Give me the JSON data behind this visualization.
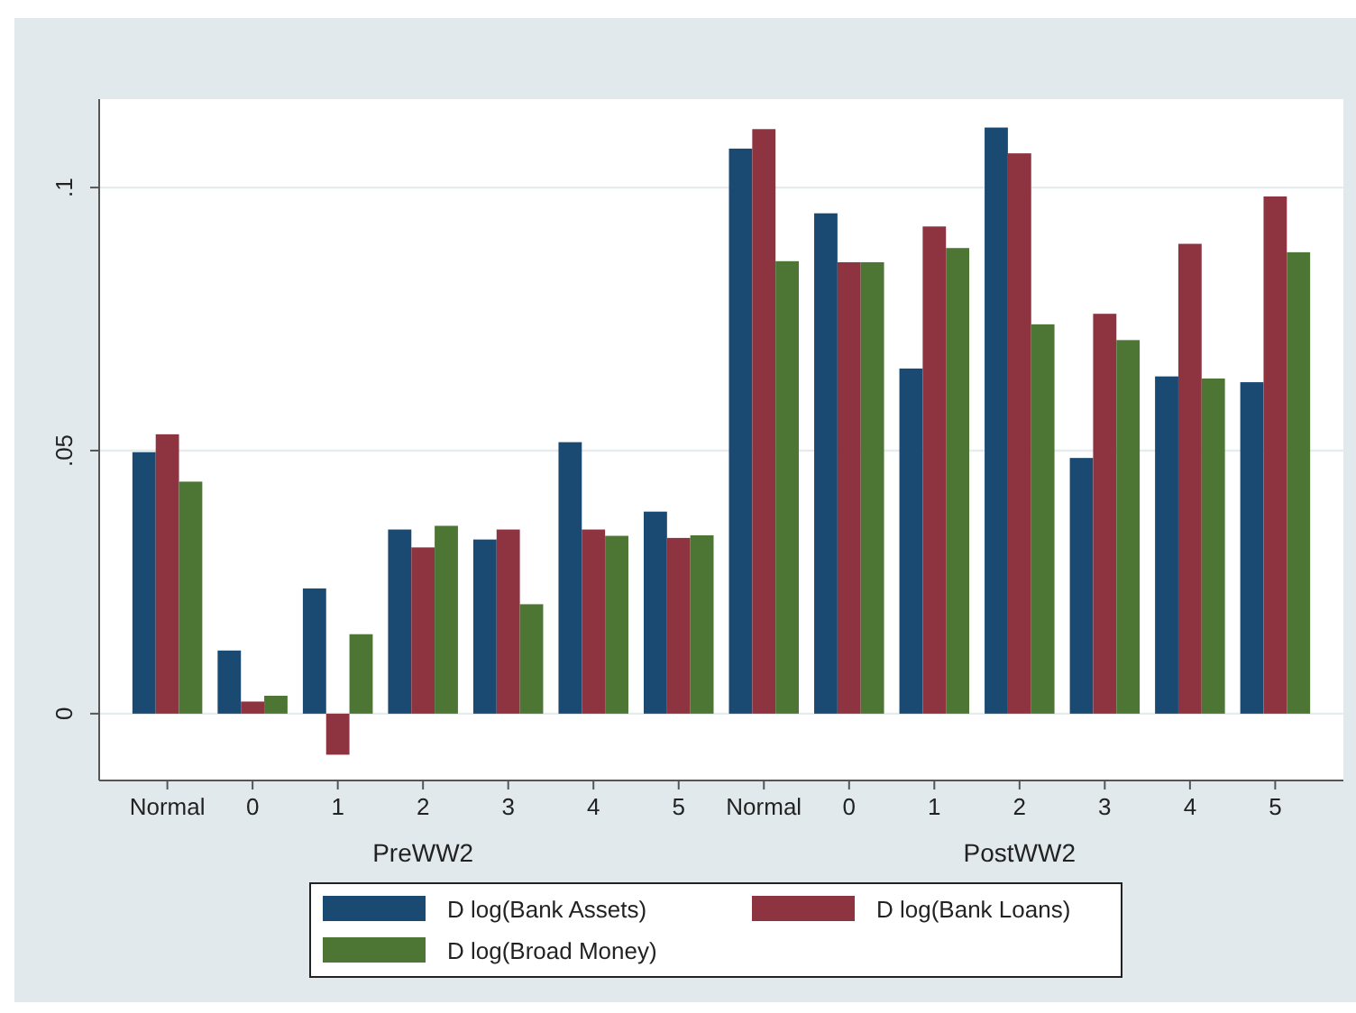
{
  "chart_data": {
    "type": "bar",
    "categories": [
      "Normal",
      "0",
      "1",
      "2",
      "3",
      "4",
      "5",
      "Normal",
      "0",
      "1",
      "2",
      "3",
      "4",
      "5"
    ],
    "series": [
      {
        "name": "D log(Bank Assets)",
        "color": "#1a4a72",
        "values": [
          0.0497,
          0.012,
          0.0238,
          0.035,
          0.0331,
          0.0516,
          0.0384,
          0.1074,
          0.0951,
          0.0656,
          0.1114,
          0.0486,
          0.0641,
          0.063
        ]
      },
      {
        "name": "D log(Bank Loans)",
        "color": "#8e3440",
        "values": [
          0.0531,
          0.0023,
          -0.0078,
          0.0316,
          0.035,
          0.035,
          0.0334,
          0.1111,
          0.0858,
          0.0926,
          0.1065,
          0.076,
          0.0893,
          0.0983
        ]
      },
      {
        "name": "D log(Broad Money)",
        "color": "#4d7634",
        "values": [
          0.0441,
          0.0034,
          0.0151,
          0.0357,
          0.0208,
          0.0338,
          0.0339,
          0.086,
          0.0858,
          0.0885,
          0.074,
          0.071,
          0.0637,
          0.0877
        ]
      }
    ],
    "annotations": [
      "PreWW2",
      "PostWW2"
    ],
    "ylim": [
      -0.0127,
      0.1168
    ],
    "yticks": [
      {
        "value": 0,
        "label": "0"
      },
      {
        "value": 0.05,
        "label": ".05"
      },
      {
        "value": 0.1,
        "label": ".1"
      }
    ],
    "grid": "y",
    "legend": "bottom"
  }
}
